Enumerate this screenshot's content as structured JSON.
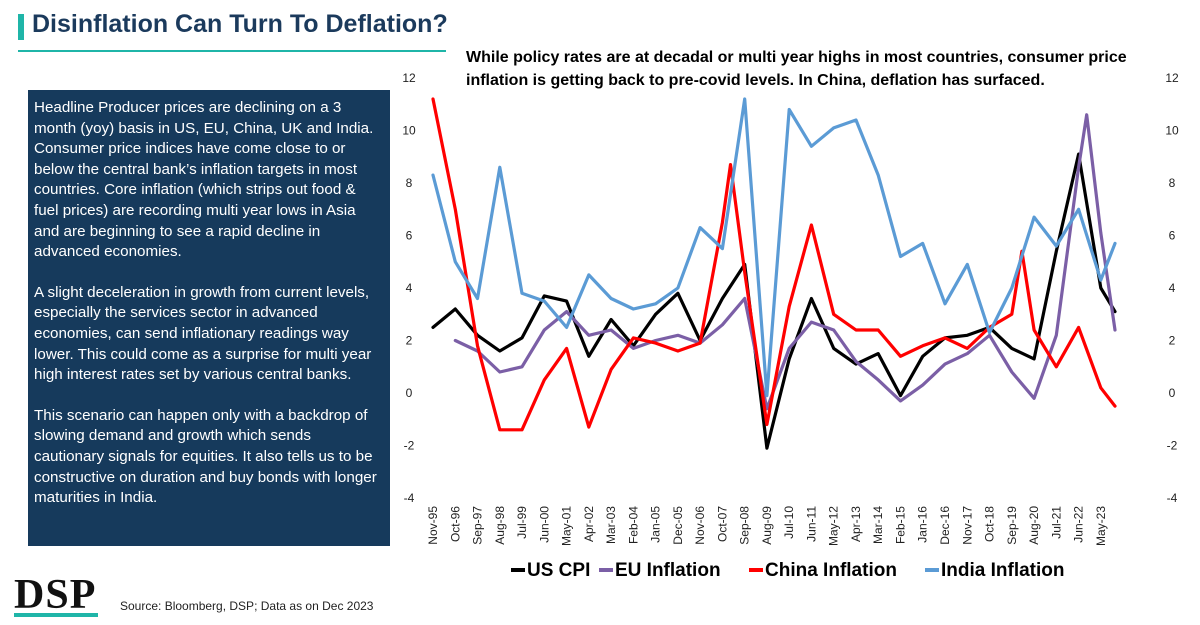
{
  "header": {
    "title": "Disinflation Can Turn To Deflation?",
    "subtitle": "While policy rates are at decadal or multi year highs in most countries, consumer price inflation is getting back to pre-covid levels. In China, deflation has surfaced."
  },
  "commentary": {
    "paragraphs": [
      "Headline Producer prices are declining on a 3 month (yoy) basis in US, EU, China, UK and India. Consumer price indices have come close to or below the central bank’s inflation targets in most countries. Core inflation (which strips out food & fuel prices) are recording multi year lows in Asia and are beginning to see a rapid decline in advanced economies.",
      "A slight deceleration in growth from current levels, especially the services sector in advanced economies, can send inflationary readings way lower. This could come as a surprise for multi year high interest rates set by various central banks.",
      "This scenario can happen only with a backdrop of slowing demand and growth which sends cautionary signals for equities. It also tells us to be constructive on duration and buy bonds with longer maturities in India."
    ]
  },
  "footer": {
    "logo": "DSP",
    "source": "Source: Bloomberg, DSP; Data as on Dec 2023"
  },
  "colors": {
    "title": "#1b3a5c",
    "accent": "#1fb5a8",
    "panel": "#163a5c"
  },
  "chart_data": {
    "type": "line",
    "title": "",
    "xlabel": "",
    "ylabel": "",
    "ylim": [
      -4,
      12
    ],
    "yticks": [
      -4,
      -2,
      0,
      2,
      4,
      6,
      8,
      10,
      12
    ],
    "dual_axis_same_scale": true,
    "legend_position": "bottom",
    "x_tick_labels": [
      "Nov-95",
      "Oct-96",
      "Sep-97",
      "Aug-98",
      "Jul-99",
      "Jun-00",
      "May-01",
      "Apr-02",
      "Mar-03",
      "Feb-04",
      "Jan-05",
      "Dec-05",
      "Nov-06",
      "Oct-07",
      "Sep-08",
      "Aug-09",
      "Jul-10",
      "Jun-11",
      "May-12",
      "Apr-13",
      "Mar-14",
      "Feb-15",
      "Jan-16",
      "Dec-16",
      "Nov-17",
      "Oct-18",
      "Sep-19",
      "Aug-20",
      "Jul-21",
      "Jun-22",
      "May-23"
    ],
    "x_start": "Nov-95",
    "x_end": "Dec-23",
    "series": [
      {
        "name": "US CPI",
        "color": "#000000",
        "x": [
          "Nov-95",
          "Oct-96",
          "Sep-97",
          "Aug-98",
          "Jul-99",
          "Jun-00",
          "May-01",
          "Apr-02",
          "Mar-03",
          "Feb-04",
          "Jan-05",
          "Dec-05",
          "Nov-06",
          "Oct-07",
          "Sep-08",
          "Aug-09",
          "Jul-10",
          "Jun-11",
          "May-12",
          "Apr-13",
          "Mar-14",
          "Feb-15",
          "Jan-16",
          "Dec-16",
          "Nov-17",
          "Oct-18",
          "Sep-19",
          "Aug-20",
          "Jul-21",
          "Jun-22",
          "May-23",
          "Dec-23"
        ],
        "values": [
          2.5,
          3.2,
          2.2,
          1.6,
          2.1,
          3.7,
          3.5,
          1.4,
          2.8,
          1.8,
          3.0,
          3.8,
          2.0,
          3.6,
          4.9,
          -2.1,
          1.3,
          3.6,
          1.7,
          1.1,
          1.5,
          -0.1,
          1.4,
          2.1,
          2.2,
          2.5,
          1.7,
          1.3,
          5.4,
          9.1,
          4.0,
          3.1
        ]
      },
      {
        "name": "EU Inflation",
        "color": "#7b5fa6",
        "x": [
          "Oct-96",
          "Sep-97",
          "Aug-98",
          "Jul-99",
          "Jun-00",
          "May-01",
          "Apr-02",
          "Mar-03",
          "Feb-04",
          "Jan-05",
          "Dec-05",
          "Nov-06",
          "Oct-07",
          "Sep-08",
          "Aug-09",
          "Jul-10",
          "Jun-11",
          "May-12",
          "Apr-13",
          "Mar-14",
          "Feb-15",
          "Jan-16",
          "Dec-16",
          "Nov-17",
          "Oct-18",
          "Sep-19",
          "Aug-20",
          "Jul-21",
          "Jun-22",
          "Oct-22",
          "May-23",
          "Dec-23"
        ],
        "values": [
          2.0,
          1.6,
          0.8,
          1.0,
          2.4,
          3.1,
          2.2,
          2.4,
          1.7,
          2.0,
          2.2,
          1.9,
          2.6,
          3.6,
          -0.6,
          1.7,
          2.7,
          2.4,
          1.2,
          0.5,
          -0.3,
          0.3,
          1.1,
          1.5,
          2.2,
          0.8,
          -0.2,
          2.2,
          8.6,
          10.6,
          6.1,
          2.4
        ]
      },
      {
        "name": "China Inflation",
        "color": "#ff0000",
        "x": [
          "Nov-95",
          "Oct-96",
          "Sep-97",
          "Aug-98",
          "Jul-99",
          "Jun-00",
          "May-01",
          "Apr-02",
          "Mar-03",
          "Feb-04",
          "Jan-05",
          "Dec-05",
          "Nov-06",
          "Oct-07",
          "Feb-08",
          "Sep-08",
          "Aug-09",
          "Jul-10",
          "Jun-11",
          "May-12",
          "Apr-13",
          "Mar-14",
          "Feb-15",
          "Jan-16",
          "Dec-16",
          "Nov-17",
          "Oct-18",
          "Sep-19",
          "Feb-20",
          "Aug-20",
          "Jul-21",
          "Jun-22",
          "May-23",
          "Dec-23"
        ],
        "values": [
          11.2,
          7.0,
          1.8,
          -1.4,
          -1.4,
          0.5,
          1.7,
          -1.3,
          0.9,
          2.1,
          1.9,
          1.6,
          1.9,
          6.5,
          8.7,
          4.6,
          -1.2,
          3.3,
          6.4,
          3.0,
          2.4,
          2.4,
          1.4,
          1.8,
          2.1,
          1.7,
          2.5,
          3.0,
          5.4,
          2.4,
          1.0,
          2.5,
          0.2,
          -0.5
        ]
      },
      {
        "name": "India Inflation",
        "color": "#5b9bd5",
        "x": [
          "Nov-95",
          "Oct-96",
          "Sep-97",
          "Aug-98",
          "Jul-99",
          "Jun-00",
          "May-01",
          "Apr-02",
          "Mar-03",
          "Feb-04",
          "Jan-05",
          "Dec-05",
          "Nov-06",
          "Oct-07",
          "Sep-08",
          "Aug-09",
          "Jul-10",
          "Jun-11",
          "May-12",
          "Apr-13",
          "Mar-14",
          "Feb-15",
          "Jan-16",
          "Dec-16",
          "Nov-17",
          "Oct-18",
          "Sep-19",
          "Aug-20",
          "Jul-21",
          "Jun-22",
          "May-23",
          "Dec-23"
        ],
        "values": [
          8.3,
          5.0,
          3.6,
          8.6,
          3.8,
          3.5,
          2.5,
          4.5,
          3.6,
          3.2,
          3.4,
          4.0,
          6.3,
          5.5,
          11.2,
          -0.1,
          10.8,
          9.4,
          10.1,
          10.4,
          8.3,
          5.2,
          5.7,
          3.4,
          4.9,
          2.3,
          4.0,
          6.7,
          5.6,
          7.0,
          4.3,
          5.7
        ]
      }
    ]
  }
}
